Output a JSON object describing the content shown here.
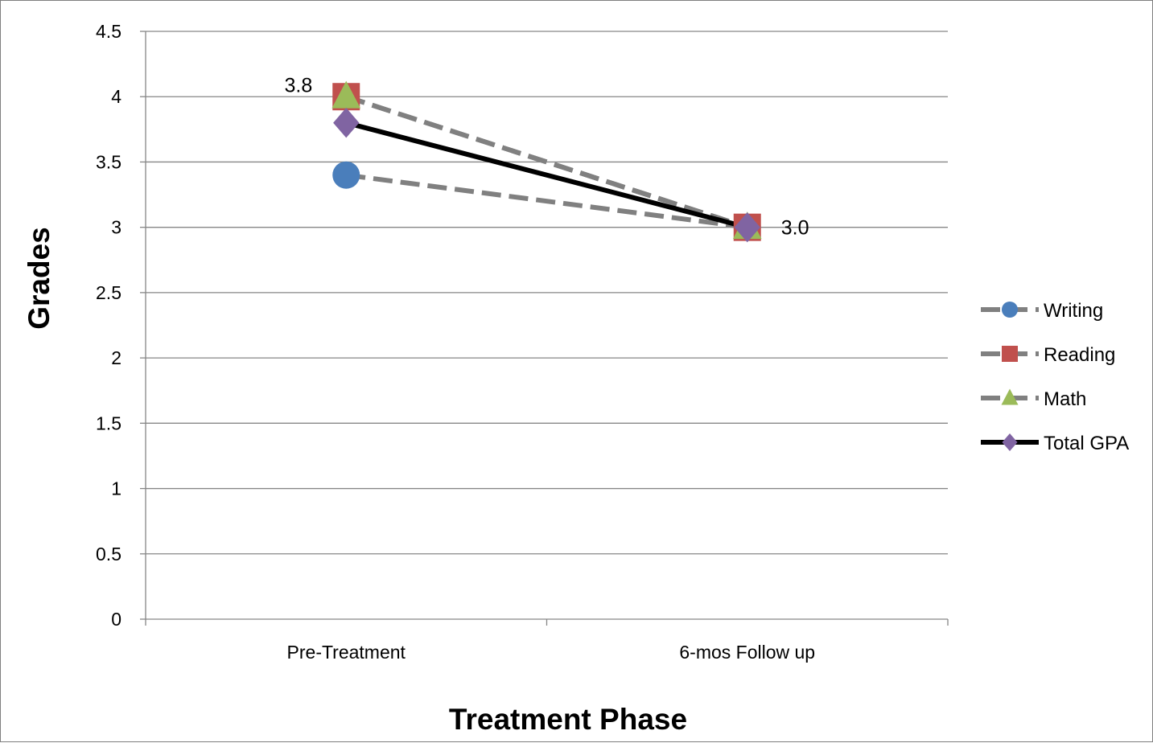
{
  "chart_data": {
    "type": "line",
    "title": "",
    "xlabel": "Treatment Phase",
    "ylabel": "Grades",
    "categories": [
      "Pre-Treatment",
      "6-mos Follow up"
    ],
    "ylim": [
      0,
      4.5
    ],
    "yticks": [
      "0",
      "0.5",
      "1",
      "1.5",
      "2",
      "2.5",
      "3",
      "3.5",
      "4",
      "4.5"
    ],
    "grid": true,
    "legend_position": "right",
    "series": [
      {
        "name": "Writing",
        "values": [
          3.4,
          3.0
        ],
        "color": "#4a7ebb",
        "line_color": "#808080",
        "marker": "circle",
        "dash": true
      },
      {
        "name": "Reading",
        "values": [
          4.0,
          3.0
        ],
        "color": "#c0504d",
        "line_color": "#808080",
        "marker": "square",
        "dash": true
      },
      {
        "name": "Math",
        "values": [
          4.0,
          3.0
        ],
        "color": "#9bbb59",
        "line_color": "#808080",
        "marker": "triangle",
        "dash": true
      },
      {
        "name": "Total GPA",
        "values": [
          3.8,
          3.0
        ],
        "color": "#8064a2",
        "line_color": "#000000",
        "marker": "diamond",
        "dash": false
      }
    ],
    "data_labels": [
      {
        "series": "Total GPA",
        "index": 0,
        "text": "3.8"
      },
      {
        "series": "Total GPA",
        "index": 1,
        "text": "3.0"
      }
    ]
  }
}
